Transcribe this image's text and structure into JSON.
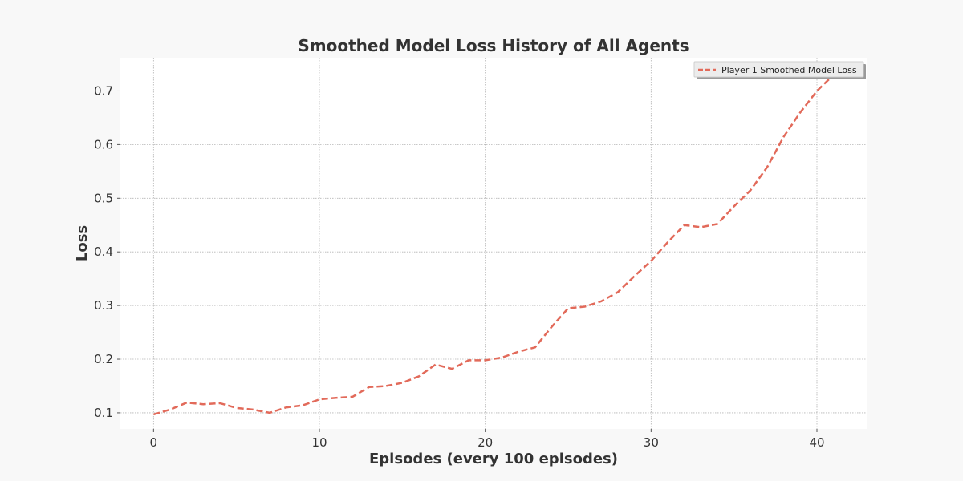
{
  "chart_data": {
    "type": "line",
    "title": "Smoothed Model Loss History of All Agents",
    "xlabel": "Episodes (every 100 episodes)",
    "ylabel": "Loss",
    "xlim": [
      -2,
      43
    ],
    "ylim": [
      0.07,
      0.762
    ],
    "x_ticks": [
      0,
      10,
      20,
      30,
      40
    ],
    "y_ticks": [
      0.1,
      0.2,
      0.3,
      0.4,
      0.5,
      0.6,
      0.7
    ],
    "grid": true,
    "legend_position": "top-right",
    "series": [
      {
        "name": "Player 1 Smoothed Model Loss",
        "color": "#e26a5a",
        "line_style": "dashed",
        "x": [
          0,
          1,
          2,
          3,
          4,
          5,
          6,
          7,
          8,
          9,
          10,
          11,
          12,
          13,
          14,
          15,
          16,
          17,
          18,
          19,
          20,
          21,
          22,
          23,
          24,
          25,
          26,
          27,
          28,
          29,
          30,
          31,
          32,
          33,
          34,
          35,
          36,
          37,
          38,
          39,
          40,
          41
        ],
        "y": [
          0.097,
          0.106,
          0.119,
          0.116,
          0.118,
          0.109,
          0.106,
          0.1,
          0.11,
          0.114,
          0.125,
          0.128,
          0.13,
          0.148,
          0.15,
          0.156,
          0.168,
          0.19,
          0.182,
          0.198,
          0.198,
          0.203,
          0.214,
          0.222,
          0.26,
          0.295,
          0.298,
          0.308,
          0.325,
          0.355,
          0.383,
          0.418,
          0.45,
          0.446,
          0.452,
          0.485,
          0.515,
          0.558,
          0.615,
          0.66,
          0.7,
          0.73
        ]
      }
    ]
  }
}
